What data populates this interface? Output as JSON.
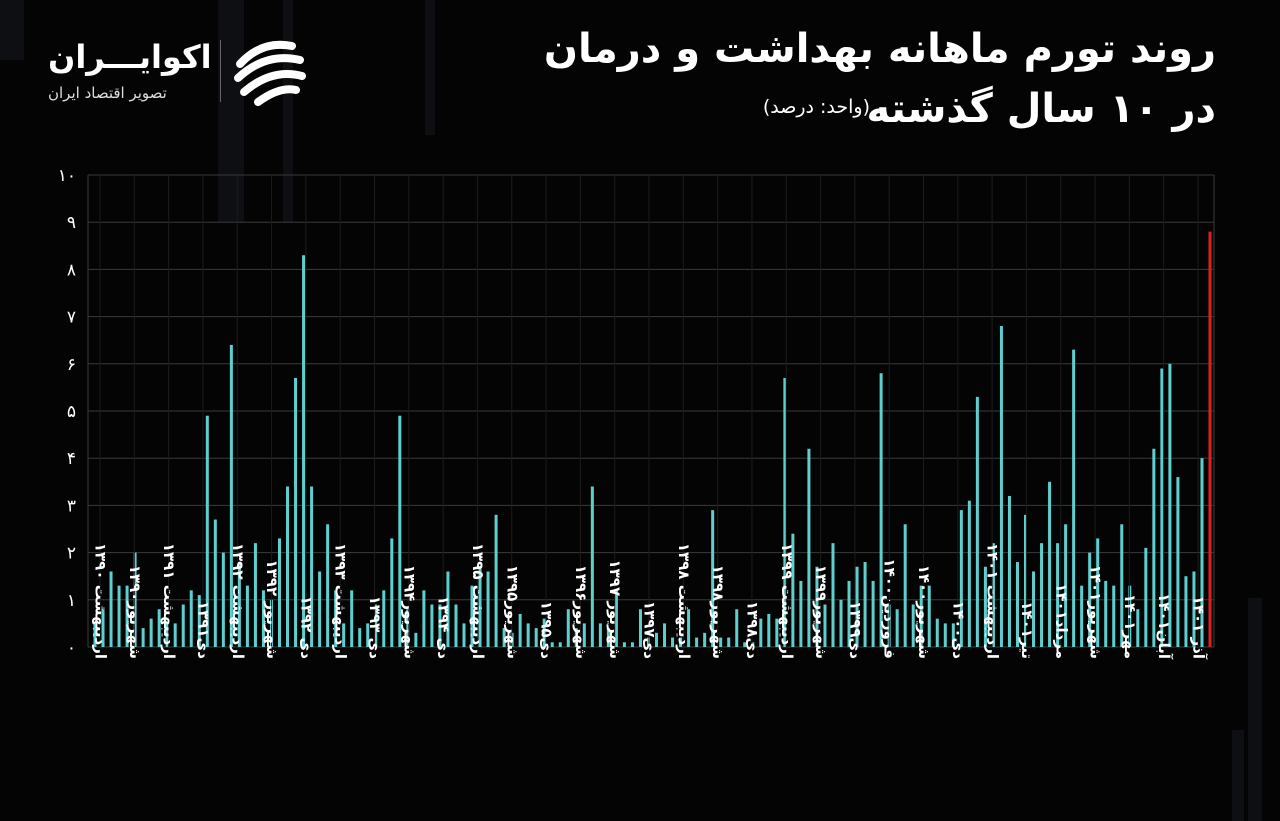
{
  "header": {
    "title_line1": "روند تورم ماهانه بهداشت و درمان",
    "title_line2": "در ۱۰ سال گذشته",
    "unit": "(واحد: درصد)"
  },
  "brand": {
    "name": "اکوایـــران",
    "tagline": "تصویر اقتصاد ایران"
  },
  "colors": {
    "background": "#040404",
    "bar": "#5ecfcf",
    "highlight": "#e02020",
    "grid": "#3a3a3a"
  },
  "chart_data": {
    "type": "bar",
    "title": "روند تورم ماهانه بهداشت و درمان در ۱۰ سال گذشته",
    "unit": "(واحد: درصد)",
    "ylim": [
      0,
      10
    ],
    "yticks": [
      "۰",
      "۱",
      "۲",
      "۳",
      "۴",
      "۵",
      "۶",
      "۷",
      "۸",
      "۹",
      "۱۰"
    ],
    "grid": "horizontal",
    "highlight_last": true,
    "x_labels": [
      "اردیبهشت ۱۳۹۰",
      "شهریور۱۳۹۰",
      "اردیبهشت ۱۳۹۱",
      "دی۱۳۹۱",
      "اردیبهشت ۱۳۹۲",
      "شهریور ۱۳۹۲",
      "دی ۱۳۹۲",
      "اردیبهشت ۱۳۹۳",
      "دی ۱۳۹۳",
      "شهریور۱۳۹۴",
      "دی ۱۳۹۴",
      "اردیبهشت ۱۳۹۵",
      "شهریور۱۳۹۵",
      "دی۱۳۹۵",
      "شهریور۱۳۹۶",
      "شهریور ۱۳۹۷",
      "دی۱۳۹۷",
      "اردیبهشت ۱۳۹۸",
      "شهریور۱۳۹۸",
      "دی۱۳۹۸",
      "اردیبهشت ۱۳۹۹",
      "شهریور۱۳۹۹",
      "دی۱۳۹۹",
      "فروردین۱۴۰۰",
      "شهریور۱۴۰۰",
      "دی۱۴۰۰",
      "اردیبهشت ۱۴۰۱",
      "تیر۱۴۰۱",
      "مرداد۱۴۰۱",
      "شهریور۱۴۰۱",
      "مهر۱۴۰۱",
      "آبان۱۴۰۱",
      "آذر ۱۴۰۱"
    ],
    "values": [
      0.5,
      0.8,
      1.6,
      1.3,
      1.3,
      2.0,
      0.4,
      0.6,
      0.8,
      0.5,
      0.5,
      0.9,
      1.2,
      1.1,
      4.9,
      2.7,
      2.0,
      6.4,
      1.8,
      1.3,
      2.2,
      1.2,
      1.0,
      2.3,
      3.4,
      5.7,
      8.3,
      3.4,
      1.6,
      2.6,
      1.2,
      0.5,
      1.2,
      0.4,
      0.5,
      0.9,
      1.2,
      2.3,
      4.9,
      0.8,
      0.3,
      1.2,
      0.9,
      0.9,
      1.6,
      0.9,
      0.5,
      1.3,
      1.7,
      1.6,
      2.8,
      0.4,
      0.3,
      0.7,
      0.5,
      0.4,
      0.6,
      0.1,
      0.1,
      0.8,
      0.4,
      0.5,
      3.4,
      0.5,
      0.4,
      1.2,
      0.1,
      0.1,
      0.8,
      0.2,
      0.3,
      0.5,
      0.2,
      0.2,
      0.8,
      0.2,
      0.3,
      2.9,
      0.2,
      0.2,
      0.8,
      0.1,
      0.1,
      0.6,
      0.7,
      0.6,
      5.7,
      2.4,
      1.4,
      4.2,
      1.7,
      0.9,
      2.2,
      1.0,
      1.4,
      1.7,
      1.8,
      1.4,
      5.8,
      0.9,
      0.8,
      2.6,
      0.9,
      1.3,
      1.3,
      0.6,
      0.5,
      0.5,
      2.9,
      3.1,
      5.3,
      1.7,
      2.2,
      6.8,
      3.2,
      1.8,
      2.8,
      1.6,
      2.2,
      3.5,
      2.2,
      2.6,
      6.3,
      1.3,
      2.0,
      2.3,
      1.4,
      1.3,
      2.6,
      1.3,
      0.8,
      2.1,
      4.2,
      5.9,
      6.0,
      3.6,
      1.5,
      1.6,
      4.0,
      8.8
    ]
  }
}
